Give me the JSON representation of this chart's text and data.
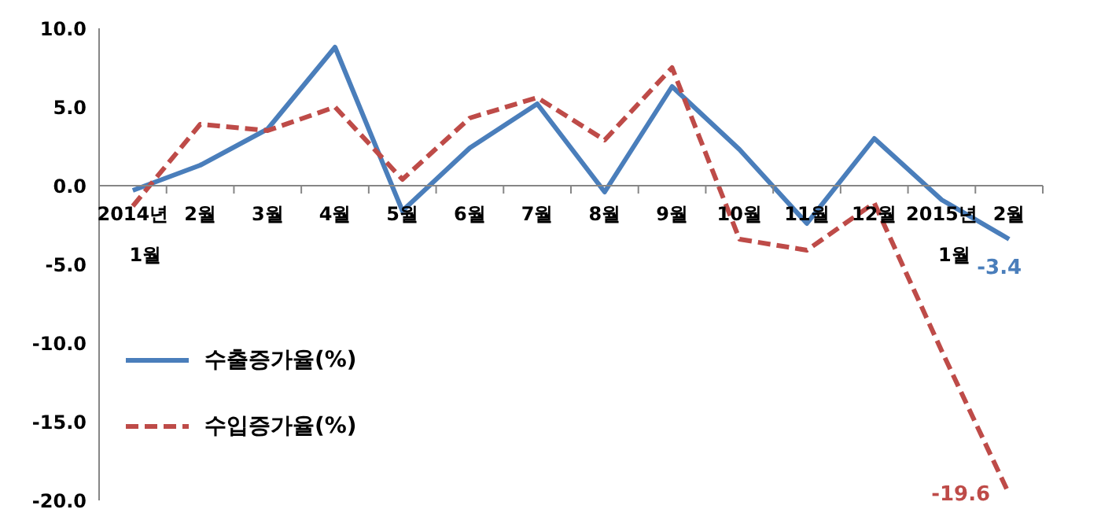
{
  "chart_data": {
    "type": "line",
    "categories": [
      "2014년 1월",
      "2월",
      "3월",
      "4월",
      "5월",
      "6월",
      "7월",
      "8월",
      "9월",
      "10월",
      "11월",
      "12월",
      "2015년 1월",
      "2월"
    ],
    "series": [
      {
        "name": "수출증가율(%)",
        "color": "#4a7ebb",
        "line_style": "solid",
        "values": [
          -0.3,
          1.3,
          3.6,
          8.8,
          -1.6,
          2.4,
          5.2,
          -0.4,
          6.3,
          2.3,
          -2.4,
          3.0,
          -0.9,
          -3.4
        ],
        "value_labels": [
          null,
          null,
          null,
          null,
          null,
          null,
          null,
          null,
          null,
          null,
          null,
          null,
          null,
          "-3.4"
        ]
      },
      {
        "name": "수입증가율(%)",
        "color": "#be4b48",
        "line_style": "dashed",
        "values": [
          -1.3,
          3.9,
          3.5,
          5.0,
          0.4,
          4.3,
          5.6,
          2.9,
          7.5,
          -3.4,
          -4.1,
          -1.1,
          -10.5,
          -19.6
        ],
        "value_labels": [
          null,
          null,
          null,
          null,
          null,
          null,
          null,
          null,
          null,
          null,
          null,
          null,
          null,
          "-19.6"
        ]
      }
    ],
    "ylim": [
      -20,
      10
    ],
    "yticks": [
      {
        "value": -20,
        "label": "-20.0"
      },
      {
        "value": -15,
        "label": "-15.0"
      },
      {
        "value": -10,
        "label": "-10.0"
      },
      {
        "value": -5,
        "label": "-5.0"
      },
      {
        "value": 0,
        "label": "0.0"
      },
      {
        "value": 5,
        "label": "5.0"
      },
      {
        "value": 10,
        "label": "10.0"
      }
    ],
    "legend": "bottom left",
    "marker": "none"
  }
}
